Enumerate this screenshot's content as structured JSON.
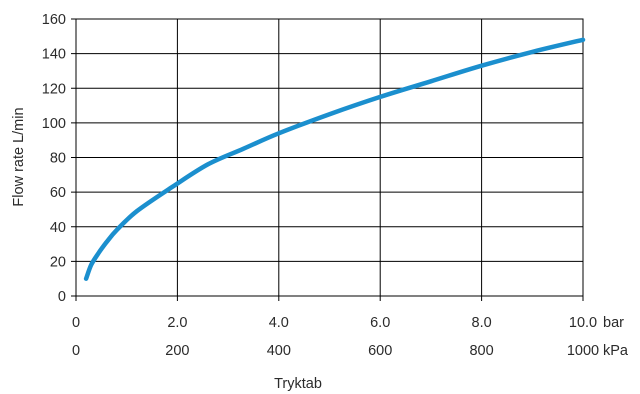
{
  "chart_data": {
    "type": "line",
    "title": "",
    "xlabel": "Tryktab",
    "ylabel": "Flow rate L/min",
    "x_unit_primary": "bar",
    "x_unit_secondary": "kPa",
    "xlim": [
      0,
      10
    ],
    "ylim": [
      0,
      160
    ],
    "grid": true,
    "x_ticks": [
      {
        "value": 0,
        "bar": "0",
        "kpa": "0"
      },
      {
        "value": 2,
        "bar": "2.0",
        "kpa": "200"
      },
      {
        "value": 4,
        "bar": "4.0",
        "kpa": "400"
      },
      {
        "value": 6,
        "bar": "6.0",
        "kpa": "600"
      },
      {
        "value": 8,
        "bar": "8.0",
        "kpa": "800"
      },
      {
        "value": 10,
        "bar": "10.0",
        "kpa": "1000"
      }
    ],
    "y_ticks": [
      "0",
      "20",
      "40",
      "60",
      "80",
      "100",
      "120",
      "140",
      "160"
    ],
    "series": [
      {
        "color": "#1b8fce",
        "x": [
          0.2,
          0.3,
          0.45,
          0.6,
          0.8,
          1.2,
          1.9,
          2.6,
          3.3,
          4.0,
          5.0,
          6.0,
          7.0,
          8.0,
          9.0,
          10.0
        ],
        "y": [
          10,
          18,
          25,
          31,
          38,
          49,
          63,
          76,
          85,
          94,
          105,
          115,
          124,
          133,
          141,
          148
        ]
      }
    ]
  }
}
